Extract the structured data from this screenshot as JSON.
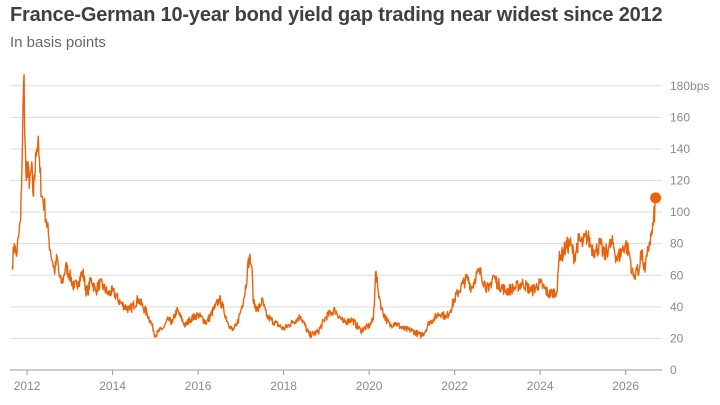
{
  "header": {
    "title": "France-German 10-year bond yield gap trading near widest since 2012",
    "subtitle": "In basis points"
  },
  "chart_data": {
    "type": "line",
    "title": "France-German 10-year bond yield gap trading near widest since 2012",
    "subtitle": "In basis points",
    "xlabel": "",
    "ylabel": "",
    "y_unit_label": "bps",
    "xlim": [
      2011.6,
      2026.85
    ],
    "ylim": [
      0,
      190
    ],
    "y_ticks": [
      0,
      20,
      40,
      60,
      80,
      100,
      120,
      140,
      160,
      180
    ],
    "y_tick_labels": [
      "0",
      "20",
      "40",
      "60",
      "80",
      "100",
      "120",
      "140",
      "160",
      "180bps"
    ],
    "x_ticks": [
      2012,
      2014,
      2016,
      2018,
      2020,
      2022,
      2024,
      2026
    ],
    "x_tick_labels": [
      "2012",
      "2014",
      "2016",
      "2018",
      "2020",
      "2022",
      "2024",
      "2026"
    ],
    "grid": "horizontal",
    "series_color": "#e8640c",
    "end_marker": {
      "x": 2026.7,
      "y": 109
    },
    "series": [
      {
        "x": [
          2011.65,
          2011.7,
          2011.75,
          2011.8,
          2011.85,
          2011.88,
          2011.9,
          2011.93,
          2011.95,
          2011.98,
          2012.02,
          2012.05,
          2012.1,
          2012.15,
          2012.2,
          2012.25,
          2012.3,
          2012.35,
          2012.4,
          2012.45,
          2012.5,
          2012.55,
          2012.6,
          2012.65,
          2012.7,
          2012.75,
          2012.8,
          2012.85,
          2012.9,
          2013.0,
          2013.1,
          2013.2,
          2013.3,
          2013.4,
          2013.5,
          2013.6,
          2013.7,
          2013.8,
          2013.9,
          2014.0,
          2014.2,
          2014.4,
          2014.6,
          2014.8,
          2014.9,
          2015.0,
          2015.1,
          2015.2,
          2015.3,
          2015.4,
          2015.5,
          2015.6,
          2015.7,
          2015.8,
          2016.0,
          2016.2,
          2016.4,
          2016.5,
          2016.6,
          2016.7,
          2016.8,
          2016.9,
          2017.0,
          2017.1,
          2017.15,
          2017.2,
          2017.25,
          2017.3,
          2017.4,
          2017.5,
          2017.6,
          2017.8,
          2018.0,
          2018.2,
          2018.4,
          2018.6,
          2018.8,
          2019.0,
          2019.2,
          2019.4,
          2019.6,
          2019.8,
          2020.0,
          2020.1,
          2020.15,
          2020.2,
          2020.25,
          2020.3,
          2020.4,
          2020.5,
          2020.6,
          2020.8,
          2021.0,
          2021.2,
          2021.3,
          2021.4,
          2021.5,
          2021.6,
          2021.7,
          2021.8,
          2021.9,
          2022.0,
          2022.1,
          2022.2,
          2022.3,
          2022.4,
          2022.5,
          2022.6,
          2022.7,
          2022.8,
          2022.9,
          2023.0,
          2023.2,
          2023.4,
          2023.6,
          2023.8,
          2024.0,
          2024.2,
          2024.4,
          2024.45,
          2024.5,
          2024.6,
          2024.7,
          2024.8,
          2024.9,
          2025.0,
          2025.1,
          2025.2,
          2025.3,
          2025.4,
          2025.5,
          2025.6,
          2025.7,
          2025.8,
          2025.9,
          2026.0,
          2026.1,
          2026.15,
          2026.2,
          2026.25,
          2026.3,
          2026.35,
          2026.4,
          2026.45,
          2026.5,
          2026.55,
          2026.6,
          2026.65,
          2026.7
        ],
        "values": [
          66,
          80,
          72,
          84,
          95,
          130,
          160,
          187,
          145,
          120,
          132,
          115,
          128,
          110,
          138,
          144,
          125,
          110,
          105,
          95,
          85,
          75,
          68,
          62,
          72,
          60,
          55,
          58,
          66,
          60,
          52,
          56,
          62,
          48,
          58,
          50,
          55,
          52,
          48,
          50,
          42,
          38,
          45,
          36,
          30,
          22,
          25,
          27,
          32,
          30,
          38,
          33,
          28,
          32,
          35,
          30,
          40,
          45,
          38,
          30,
          25,
          28,
          38,
          50,
          62,
          72,
          66,
          42,
          38,
          44,
          34,
          30,
          26,
          30,
          34,
          22,
          24,
          34,
          38,
          30,
          32,
          25,
          28,
          32,
          62,
          52,
          45,
          38,
          32,
          28,
          30,
          26,
          25,
          22,
          24,
          30,
          32,
          35,
          36,
          33,
          38,
          45,
          50,
          55,
          58,
          52,
          60,
          62,
          55,
          50,
          60,
          55,
          50,
          52,
          55,
          50,
          55,
          48,
          50,
          75,
          72,
          78,
          80,
          72,
          82,
          80,
          85,
          78,
          75,
          80,
          72,
          78,
          80,
          70,
          75,
          80,
          72,
          62,
          58,
          65,
          60,
          75,
          70,
          62,
          72,
          80,
          85,
          92,
          109
        ]
      }
    ]
  }
}
